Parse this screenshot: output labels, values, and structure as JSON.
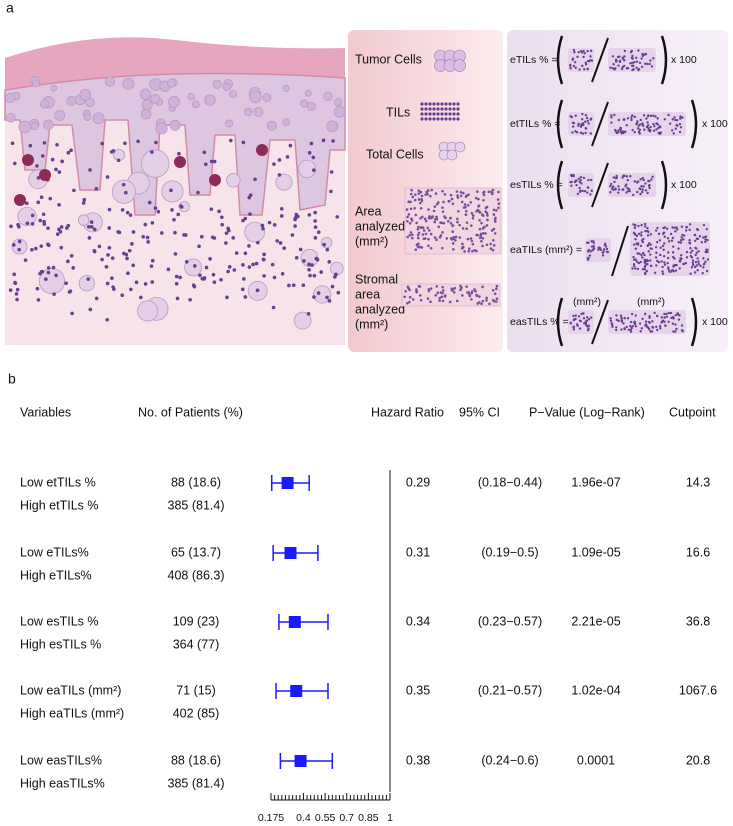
{
  "panel_a": {
    "label": "a",
    "legend": {
      "tumor_cells": "Tumor Cells",
      "tils": "TILs",
      "total_cells": "Total Cells",
      "area_analyzed": [
        "Area",
        "analyzed",
        "(mm²)"
      ],
      "stromal_area": [
        "Stromal",
        "area",
        "analyzed",
        "(mm²)"
      ]
    },
    "formulas": [
      {
        "label": "eTILs % =",
        "suffix": "x 100"
      },
      {
        "label": "etTILs % =",
        "suffix": "x 100"
      },
      {
        "label": "esTILs % =",
        "suffix": "x 100"
      },
      {
        "label": "eaTILs (mm²) ="
      },
      {
        "label": "easTILs % =",
        "suffix": "x 100",
        "numerator_unit": "(mm²)",
        "denominator_unit": "(mm²)"
      }
    ]
  },
  "chart_data": {
    "type": "forest",
    "panel_label": "b",
    "headers": {
      "variables": "Variables",
      "patients": "No. of Patients (%)",
      "hr": "Hazard Ratio",
      "ci": "95% CI",
      "p": "P−Value (Log−Rank)",
      "cutpoint": "Cutpoint"
    },
    "low_labels": [
      "Low etTILs %",
      "Low eTILs%",
      "Low esTILs %",
      "Low  eaTILs  (mm²)",
      "Low easTILs%"
    ],
    "high_labels": [
      "High etTILs %",
      "High eTILs%",
      "High esTILs %",
      "High eaTILs (mm²)",
      "High easTILs%"
    ],
    "low_patients": [
      "88 (18.6)",
      "65 (13.7)",
      "109 (23)",
      "71 (15)",
      "88 (18.6)"
    ],
    "high_patients": [
      "385 (81.4)",
      "408 (86.3)",
      "364 (77)",
      "402 (85)",
      "385 (81.4)"
    ],
    "hr": [
      0.29,
      0.31,
      0.34,
      0.35,
      0.38
    ],
    "ci_low": [
      0.18,
      0.19,
      0.23,
      0.21,
      0.24
    ],
    "ci_high": [
      0.44,
      0.5,
      0.57,
      0.57,
      0.6
    ],
    "ci_labels": [
      "(0.18−0.44)",
      "(0.19−0.5)",
      "(0.23−0.57)",
      "(0.21−0.57)",
      "(0.24−0.6)"
    ],
    "p_values": [
      "1.96e-07",
      "1.09e-05",
      "2.21e-05",
      "1.02e-04",
      "0.0001"
    ],
    "cutpoints": [
      14.3,
      16.6,
      36.8,
      1067.6,
      20.8
    ],
    "color": "#1a1aff",
    "xlim": [
      0.175,
      1
    ],
    "xticks": [
      0.175,
      0.4,
      0.55,
      0.7,
      0.85,
      1
    ],
    "xminorticks": [
      0.2,
      0.225,
      0.25,
      0.275,
      0.3,
      0.325,
      0.35,
      0.375,
      0.425,
      0.45,
      0.475,
      0.5,
      0.525,
      0.575,
      0.6,
      0.625,
      0.65,
      0.675,
      0.725,
      0.75,
      0.775,
      0.8,
      0.825,
      0.875,
      0.9,
      0.925,
      0.95,
      0.975
    ],
    "reference_line": 1
  }
}
